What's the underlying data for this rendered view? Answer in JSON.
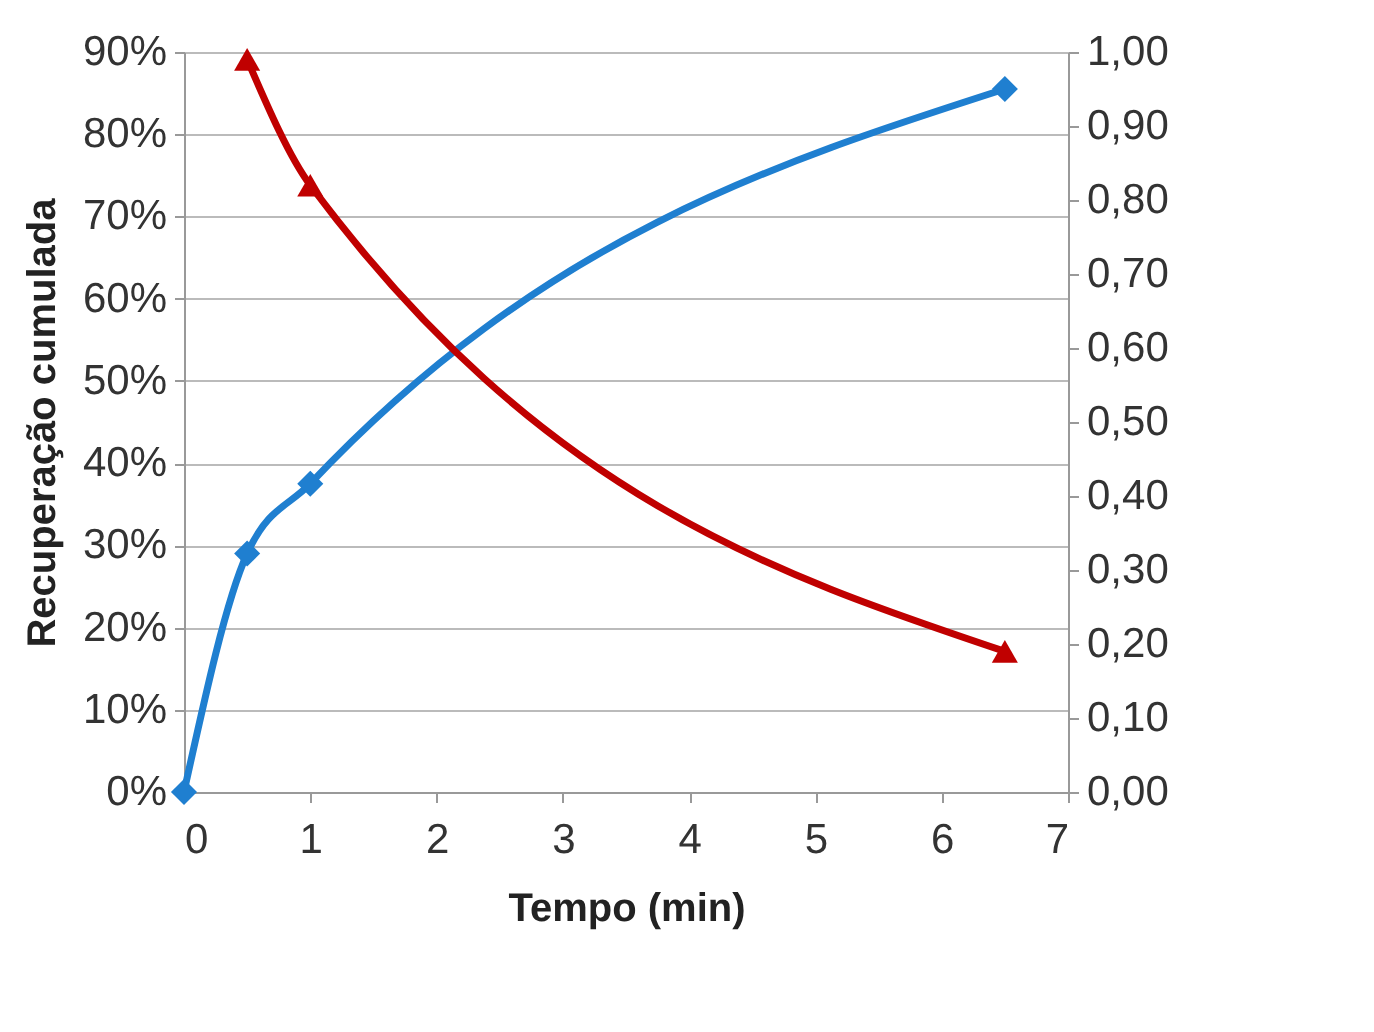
{
  "chart_data": {
    "type": "line",
    "xlabel": "Tempo (min)",
    "ylabel": "Recuperação cumulada",
    "xlim": [
      0,
      7
    ],
    "xticks": [
      0,
      1,
      2,
      3,
      4,
      5,
      6,
      7
    ],
    "ylim": [
      0,
      90
    ],
    "yticks": [
      {
        "value": 0,
        "label": "0%"
      },
      {
        "value": 10,
        "label": "10%"
      },
      {
        "value": 20,
        "label": "20%"
      },
      {
        "value": 30,
        "label": "30%"
      },
      {
        "value": 40,
        "label": "40%"
      },
      {
        "value": 50,
        "label": "50%"
      },
      {
        "value": 60,
        "label": "60%"
      },
      {
        "value": 70,
        "label": "70%"
      },
      {
        "value": 80,
        "label": "80%"
      },
      {
        "value": 90,
        "label": "90%"
      }
    ],
    "y2lim": [
      0,
      1
    ],
    "y2ticks": [
      {
        "value": 0,
        "label": "0,00"
      },
      {
        "value": 0.1,
        "label": "0,10"
      },
      {
        "value": 0.2,
        "label": "0,20"
      },
      {
        "value": 0.3,
        "label": "0,30"
      },
      {
        "value": 0.4,
        "label": "0,40"
      },
      {
        "value": 0.5,
        "label": "0,50"
      },
      {
        "value": 0.6,
        "label": "0,60"
      },
      {
        "value": 0.7,
        "label": "0,70"
      },
      {
        "value": 0.8,
        "label": "0,80"
      },
      {
        "value": 0.9,
        "label": "0,90"
      },
      {
        "value": 1,
        "label": "1,00"
      }
    ],
    "grid": "y",
    "series": [
      {
        "color": "#1f7fd0",
        "marker": "diamond",
        "x": [
          0,
          0.5,
          1,
          6.5
        ],
        "values": [
          0,
          29,
          37.5,
          85.5
        ]
      },
      {
        "color": "#c00000",
        "marker": "triangle",
        "axis": "y2",
        "x": [
          0.5,
          1,
          6.5
        ],
        "values": [
          0.99,
          0.82,
          0.19
        ]
      }
    ]
  }
}
